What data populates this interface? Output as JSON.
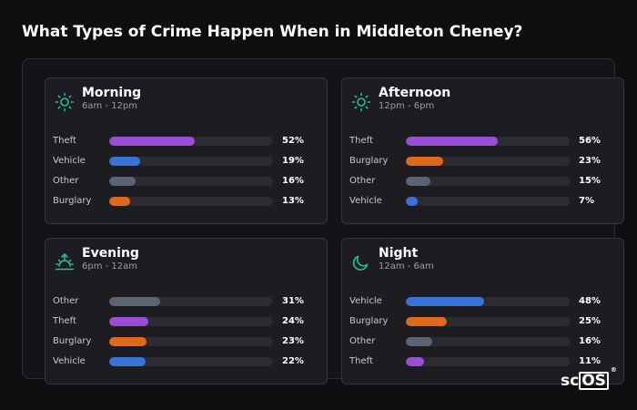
{
  "title": "What Types of Crime Happen When in Middleton Cheney?",
  "brand": {
    "prefix": "sc",
    "boxed": "OS",
    "mark": "®"
  },
  "colors": {
    "Theft": "#9b4dd6",
    "Vehicle": "#3a73d6",
    "Other": "#5c6474",
    "Burglary": "#e0681c",
    "icon": "#1fbf9a"
  },
  "cards": [
    {
      "icon": "sun-icon",
      "name": "Morning",
      "time": "6am - 12pm",
      "rows": [
        {
          "label": "Theft",
          "value": 52,
          "value_label": "52%"
        },
        {
          "label": "Vehicle",
          "value": 19,
          "value_label": "19%"
        },
        {
          "label": "Other",
          "value": 16,
          "value_label": "16%"
        },
        {
          "label": "Burglary",
          "value": 13,
          "value_label": "13%"
        }
      ]
    },
    {
      "icon": "sun-icon",
      "name": "Afternoon",
      "time": "12pm - 6pm",
      "rows": [
        {
          "label": "Theft",
          "value": 56,
          "value_label": "56%"
        },
        {
          "label": "Burglary",
          "value": 23,
          "value_label": "23%"
        },
        {
          "label": "Other",
          "value": 15,
          "value_label": "15%"
        },
        {
          "label": "Vehicle",
          "value": 7,
          "value_label": "7%"
        }
      ]
    },
    {
      "icon": "sunset-icon",
      "name": "Evening",
      "time": "6pm - 12am",
      "rows": [
        {
          "label": "Other",
          "value": 31,
          "value_label": "31%"
        },
        {
          "label": "Theft",
          "value": 24,
          "value_label": "24%"
        },
        {
          "label": "Burglary",
          "value": 23,
          "value_label": "23%"
        },
        {
          "label": "Vehicle",
          "value": 22,
          "value_label": "22%"
        }
      ]
    },
    {
      "icon": "moon-icon",
      "name": "Night",
      "time": "12am - 6am",
      "rows": [
        {
          "label": "Vehicle",
          "value": 48,
          "value_label": "48%"
        },
        {
          "label": "Burglary",
          "value": 25,
          "value_label": "25%"
        },
        {
          "label": "Other",
          "value": 16,
          "value_label": "16%"
        },
        {
          "label": "Theft",
          "value": 11,
          "value_label": "11%"
        }
      ]
    }
  ]
}
